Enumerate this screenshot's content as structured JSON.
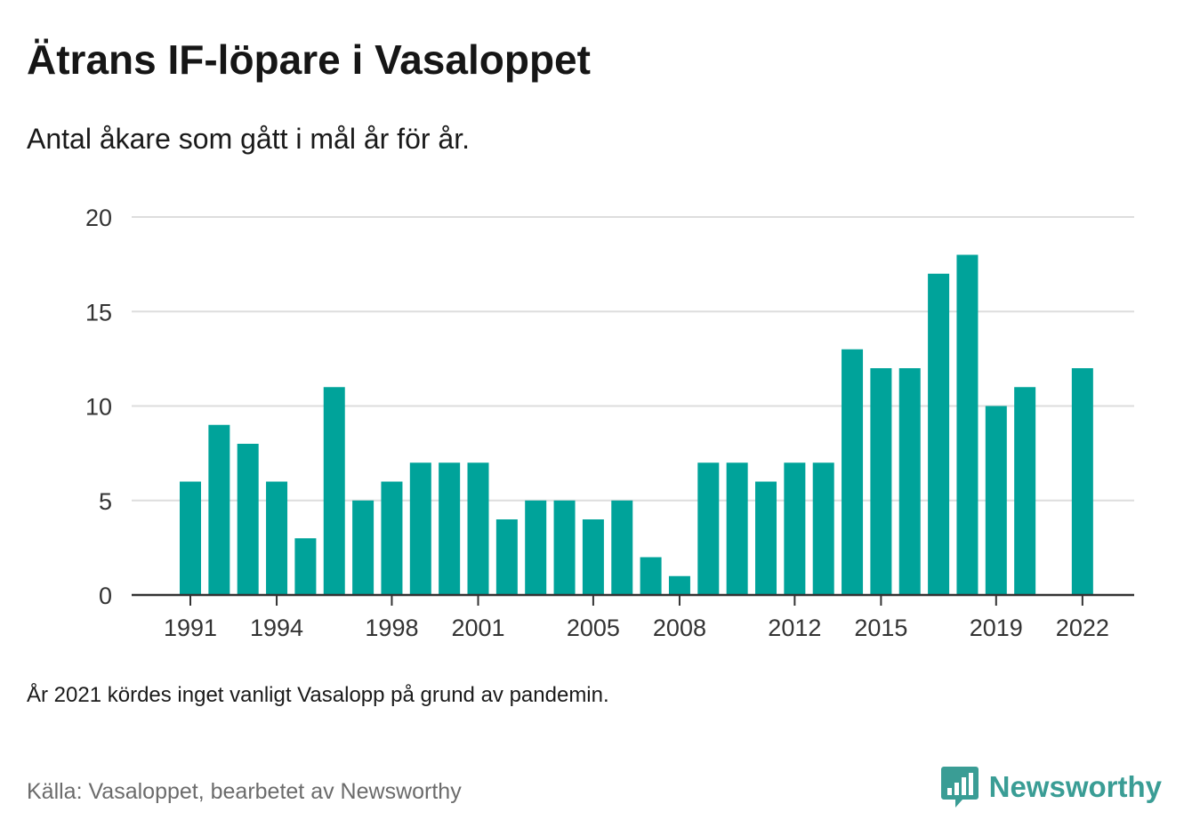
{
  "header": {
    "title": "Ätrans IF-löpare i Vasaloppet",
    "subtitle": "Antal åkare som gått i mål år för år."
  },
  "footer": {
    "note": "År 2021 kördes inget vanligt Vasalopp på grund av pandemin.",
    "source": "Källa: Vasaloppet, bearbetet av Newsworthy",
    "brand": "Newsworthy"
  },
  "colors": {
    "bar": "#00a39a",
    "grid": "#dddddd",
    "axis": "#333333",
    "brand": "#3a9d95"
  },
  "icons": {
    "brand_logo": "bar-chart-speech-bubble-icon"
  },
  "chart_data": {
    "type": "bar",
    "categories": [
      "1991",
      "1992",
      "1993",
      "1994",
      "1995",
      "1996",
      "1997",
      "1998",
      "1999",
      "2000",
      "2001",
      "2002",
      "2003",
      "2004",
      "2005",
      "2006",
      "2007",
      "2008",
      "2009",
      "2010",
      "2011",
      "2012",
      "2013",
      "2014",
      "2015",
      "2016",
      "2017",
      "2018",
      "2019",
      "2020",
      "2021",
      "2022"
    ],
    "values": [
      6,
      9,
      8,
      6,
      3,
      11,
      5,
      6,
      7,
      7,
      7,
      4,
      5,
      5,
      4,
      5,
      2,
      1,
      7,
      7,
      6,
      7,
      7,
      13,
      12,
      12,
      17,
      18,
      10,
      11,
      null,
      12
    ],
    "x_tick_labels": [
      "1991",
      "1994",
      "1998",
      "2001",
      "2005",
      "2008",
      "2012",
      "2015",
      "2019",
      "2022"
    ],
    "y_ticks": [
      0,
      5,
      10,
      15,
      20
    ],
    "ylim": [
      0,
      20
    ],
    "grid": true,
    "legend": "none"
  }
}
